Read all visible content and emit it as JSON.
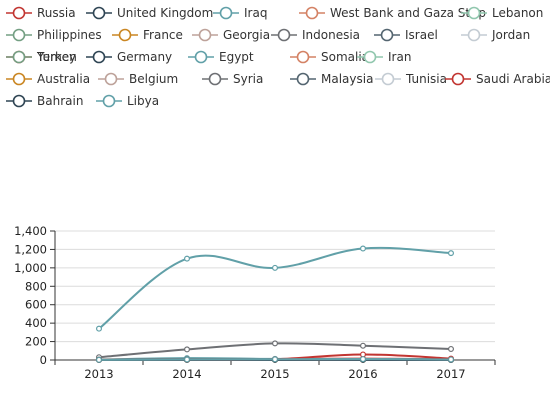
{
  "chart_data": {
    "type": "line",
    "title": "",
    "xlabel": "",
    "ylabel": "",
    "categories": [
      "2013",
      "2014",
      "2015",
      "2016",
      "2017"
    ],
    "ylim": [
      0,
      1400
    ],
    "yticks": [
      "0",
      "200",
      "400",
      "600",
      "800",
      "1,000",
      "1,200",
      "1,400"
    ],
    "grid": true,
    "legend_position": "top",
    "series": [
      {
        "name": "Russia",
        "color": "#c23531",
        "values": [
          2,
          5,
          4,
          3,
          3
        ]
      },
      {
        "name": "United Kingdom",
        "color": "#2f4554",
        "values": [
          2,
          4,
          3,
          3,
          3
        ]
      },
      {
        "name": "Iraq",
        "color": "#61a0a8",
        "values": [
          340,
          1100,
          1000,
          1210,
          1160
        ]
      },
      {
        "name": "West Bank and Gaza Strip",
        "color": "#d48265",
        "values": [
          3,
          3,
          4,
          3,
          3
        ]
      },
      {
        "name": "Lebanon",
        "color": "#91c7ae",
        "values": [
          1,
          2,
          2,
          1,
          1
        ]
      },
      {
        "name": "Philippines",
        "color": "#749f83",
        "values": [
          5,
          8,
          6,
          6,
          5
        ]
      },
      {
        "name": "France",
        "color": "#ca8622",
        "values": [
          1,
          2,
          3,
          2,
          2
        ]
      },
      {
        "name": "Georgia",
        "color": "#bda29a",
        "values": [
          0,
          1,
          1,
          0,
          0
        ]
      },
      {
        "name": "Indonesia",
        "color": "#6e7074",
        "values": [
          30,
          115,
          180,
          155,
          120
        ]
      },
      {
        "name": "Israel",
        "color": "#546570",
        "values": [
          2,
          3,
          5,
          2,
          2
        ]
      },
      {
        "name": "Jordan",
        "color": "#c4ccd3",
        "values": [
          1,
          1,
          1,
          1,
          1
        ]
      },
      {
        "name": "Turkey",
        "color": "#c23531",
        "values": [
          2,
          5,
          10,
          15,
          8
        ]
      },
      {
        "name": "Germany",
        "color": "#2f4554",
        "values": [
          1,
          2,
          2,
          2,
          2
        ]
      },
      {
        "name": "Egypt",
        "color": "#61a0a8",
        "values": [
          5,
          20,
          12,
          10,
          8
        ]
      },
      {
        "name": "Somalia",
        "color": "#d48265",
        "values": [
          3,
          6,
          5,
          4,
          4
        ]
      },
      {
        "name": "Iran",
        "color": "#91c7ae",
        "values": [
          1,
          1,
          2,
          1,
          1
        ]
      },
      {
        "name": "Yemen",
        "color": "#749f83",
        "values": [
          2,
          4,
          3,
          3,
          2
        ]
      },
      {
        "name": "Australia",
        "color": "#ca8622",
        "values": [
          1,
          1,
          1,
          1,
          1
        ]
      },
      {
        "name": "Belgium",
        "color": "#bda29a",
        "values": [
          0,
          1,
          1,
          1,
          0
        ]
      },
      {
        "name": "Syria",
        "color": "#6e7074",
        "values": [
          3,
          10,
          8,
          6,
          5
        ]
      },
      {
        "name": "Malaysia",
        "color": "#546570",
        "values": [
          1,
          2,
          2,
          2,
          1
        ]
      },
      {
        "name": "Tunisia",
        "color": "#c4ccd3",
        "values": [
          1,
          2,
          3,
          2,
          1
        ]
      },
      {
        "name": "Saudi Arabia",
        "color": "#c23531",
        "values": [
          2,
          3,
          8,
          60,
          15
        ]
      },
      {
        "name": "Bahrain",
        "color": "#2f4554",
        "values": [
          1,
          2,
          2,
          2,
          1
        ]
      },
      {
        "name": "Libya",
        "color": "#61a0a8",
        "values": [
          2,
          5,
          8,
          10,
          6
        ]
      }
    ]
  }
}
